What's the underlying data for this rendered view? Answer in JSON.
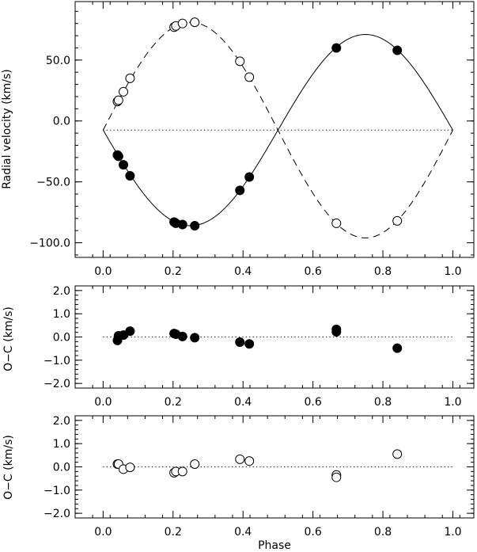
{
  "chart_data": [
    {
      "type": "scatter",
      "title": "",
      "xlabel": "",
      "ylabel": "Radial velocity (km/s)",
      "xlim": [
        -0.08,
        1.06
      ],
      "ylim": [
        -112,
        98
      ],
      "xticks": [
        0.0,
        0.2,
        0.4,
        0.6,
        0.8,
        1.0
      ],
      "xtick_labels": [
        "0.0",
        "0.2",
        "0.4",
        "0.6",
        "0.8",
        "1.0"
      ],
      "yticks": [
        -100,
        -50,
        0,
        50
      ],
      "ytick_labels": [
        "−100.0",
        "−50.0",
        "0.0",
        "50.0"
      ],
      "systemic_velocity": -7.5,
      "curves": [
        {
          "name": "primary orbit fit",
          "style": "solid",
          "gamma": -7.5,
          "K": 78.5
        },
        {
          "name": "secondary orbit fit",
          "style": "dashed",
          "gamma": -7.5,
          "K": -88.5
        }
      ],
      "series": [
        {
          "name": "primary",
          "marker": "filled",
          "x": [
            0.041,
            0.044,
            0.058,
            0.077,
            0.203,
            0.208,
            0.227,
            0.262,
            0.391,
            0.418,
            0.667,
            0.841
          ],
          "y": [
            -28,
            -29,
            -36,
            -45,
            -83,
            -84,
            -85,
            -86,
            -57,
            -46,
            60,
            58
          ]
        },
        {
          "name": "secondary",
          "marker": "open",
          "x": [
            0.041,
            0.044,
            0.058,
            0.077,
            0.203,
            0.208,
            0.227,
            0.262,
            0.391,
            0.418,
            0.667,
            0.841
          ],
          "y": [
            16,
            17,
            24,
            35,
            77,
            78,
            80,
            81,
            49,
            36,
            -84,
            -82
          ]
        }
      ]
    },
    {
      "type": "scatter",
      "title": "",
      "xlabel": "",
      "ylabel": "O−C (km/s)",
      "xlim": [
        -0.08,
        1.06
      ],
      "ylim": [
        -2.2,
        2.2
      ],
      "xticks": [
        0.0,
        0.2,
        0.4,
        0.6,
        0.8,
        1.0
      ],
      "xtick_labels": [
        "0.0",
        "0.2",
        "0.4",
        "0.6",
        "0.8",
        "1.0"
      ],
      "yticks": [
        -2,
        -1,
        0,
        1,
        2
      ],
      "ytick_labels": [
        "−2.0",
        "−1.0",
        "0.0",
        "1.0",
        "2.0"
      ],
      "zero_line": 0,
      "series": [
        {
          "name": "primary residuals",
          "marker": "filled",
          "x": [
            0.041,
            0.044,
            0.058,
            0.077,
            0.203,
            0.208,
            0.227,
            0.262,
            0.391,
            0.418,
            0.667,
            0.667,
            0.841
          ],
          "y": [
            -0.15,
            0.05,
            0.08,
            0.25,
            0.15,
            0.12,
            0.02,
            -0.03,
            -0.22,
            -0.3,
            0.22,
            0.33,
            -0.48
          ]
        }
      ]
    },
    {
      "type": "scatter",
      "title": "",
      "xlabel": "Phase",
      "ylabel": "O−C (km/s)",
      "xlim": [
        -0.08,
        1.06
      ],
      "ylim": [
        -2.2,
        2.2
      ],
      "xticks": [
        0.0,
        0.2,
        0.4,
        0.6,
        0.8,
        1.0
      ],
      "xtick_labels": [
        "0.0",
        "0.2",
        "0.4",
        "0.6",
        "0.8",
        "1.0"
      ],
      "yticks": [
        -2,
        -1,
        0,
        1,
        2
      ],
      "ytick_labels": [
        "−2.0",
        "−1.0",
        "0.0",
        "1.0",
        "2.0"
      ],
      "zero_line": 0,
      "series": [
        {
          "name": "secondary residuals",
          "marker": "open",
          "x": [
            0.041,
            0.044,
            0.058,
            0.077,
            0.203,
            0.208,
            0.227,
            0.262,
            0.391,
            0.418,
            0.667,
            0.667,
            0.841
          ],
          "y": [
            0.12,
            0.12,
            -0.1,
            -0.02,
            -0.25,
            -0.2,
            -0.2,
            0.12,
            0.33,
            0.25,
            -0.35,
            -0.45,
            0.55
          ]
        }
      ]
    }
  ]
}
